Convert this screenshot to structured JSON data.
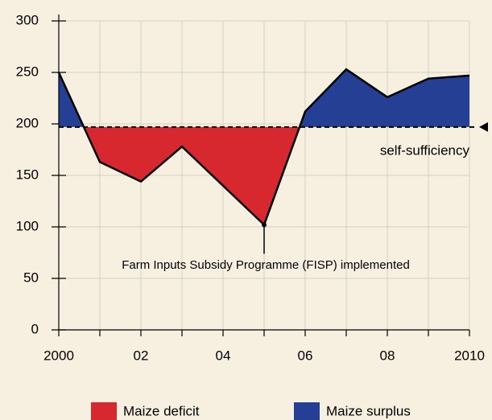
{
  "chart_data": {
    "type": "line",
    "x": [
      2000,
      2001,
      2002,
      2003,
      2004,
      2005,
      2006,
      2007,
      2008,
      2009,
      2010
    ],
    "line": {
      "values": [
        250,
        163,
        144,
        178,
        140,
        102,
        212,
        253,
        226,
        244,
        247
      ],
      "color": "#000000"
    },
    "threshold": {
      "value": 197,
      "label": "self-sufficiency"
    },
    "fills": {
      "below": {
        "name": "Maize deficit",
        "color": "#d7282f"
      },
      "above": {
        "name": "Maize surplus",
        "color": "#253f94"
      }
    },
    "annotation": {
      "text": "Farm Inputs Subsidy Programme (FISP) implemented",
      "x": 2005
    },
    "xlim": [
      2000,
      2010
    ],
    "xticks": [
      {
        "value": 2000,
        "label": "2000"
      },
      {
        "value": 2002,
        "label": "02"
      },
      {
        "value": 2004,
        "label": "04"
      },
      {
        "value": 2006,
        "label": "06"
      },
      {
        "value": 2008,
        "label": "08"
      },
      {
        "value": 2010,
        "label": "2010"
      }
    ],
    "ylim": [
      0,
      300
    ],
    "yticks": [
      0,
      50,
      100,
      150,
      200,
      250,
      300
    ],
    "grid": true
  }
}
